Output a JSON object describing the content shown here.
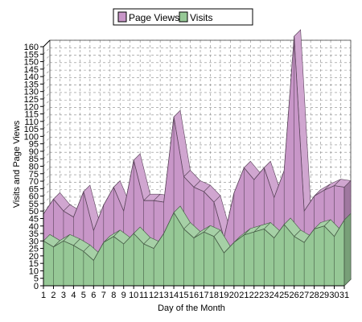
{
  "chart_data": {
    "type": "area",
    "title": "",
    "xlabel": "Day of the Month",
    "ylabel": "Visits and Page Views",
    "ylim": [
      0,
      160
    ],
    "yticks": [
      0,
      5,
      10,
      15,
      20,
      25,
      30,
      35,
      40,
      45,
      50,
      55,
      60,
      65,
      70,
      75,
      80,
      85,
      90,
      95,
      100,
      105,
      110,
      115,
      120,
      125,
      130,
      135,
      140,
      145,
      150,
      155,
      160
    ],
    "categories": [
      "1",
      "2",
      "3",
      "4",
      "5",
      "6",
      "7",
      "8",
      "9",
      "10",
      "11",
      "12",
      "13",
      "14",
      "15",
      "16",
      "17",
      "18",
      "19",
      "20",
      "21",
      "22",
      "23",
      "24",
      "25",
      "26",
      "27",
      "28",
      "29",
      "30",
      "31"
    ],
    "grid": true,
    "style": "3d",
    "legend_position": "top",
    "series": [
      {
        "name": "Page Views",
        "color": "#C896C8",
        "values": [
          48,
          58,
          50,
          46,
          63,
          37,
          54,
          66,
          50,
          84,
          57,
          57,
          56,
          113,
          73,
          66,
          63,
          56,
          32,
          62,
          79,
          71,
          79,
          59,
          77,
          167,
          50,
          60,
          64,
          67,
          66
        ]
      },
      {
        "name": "Visits",
        "color": "#96C896",
        "values": [
          30,
          26,
          30,
          27,
          23,
          17,
          29,
          33,
          28,
          35,
          28,
          25,
          35,
          49,
          38,
          32,
          36,
          33,
          22,
          29,
          34,
          36,
          38,
          32,
          41,
          33,
          29,
          38,
          40,
          33,
          44
        ]
      }
    ]
  }
}
